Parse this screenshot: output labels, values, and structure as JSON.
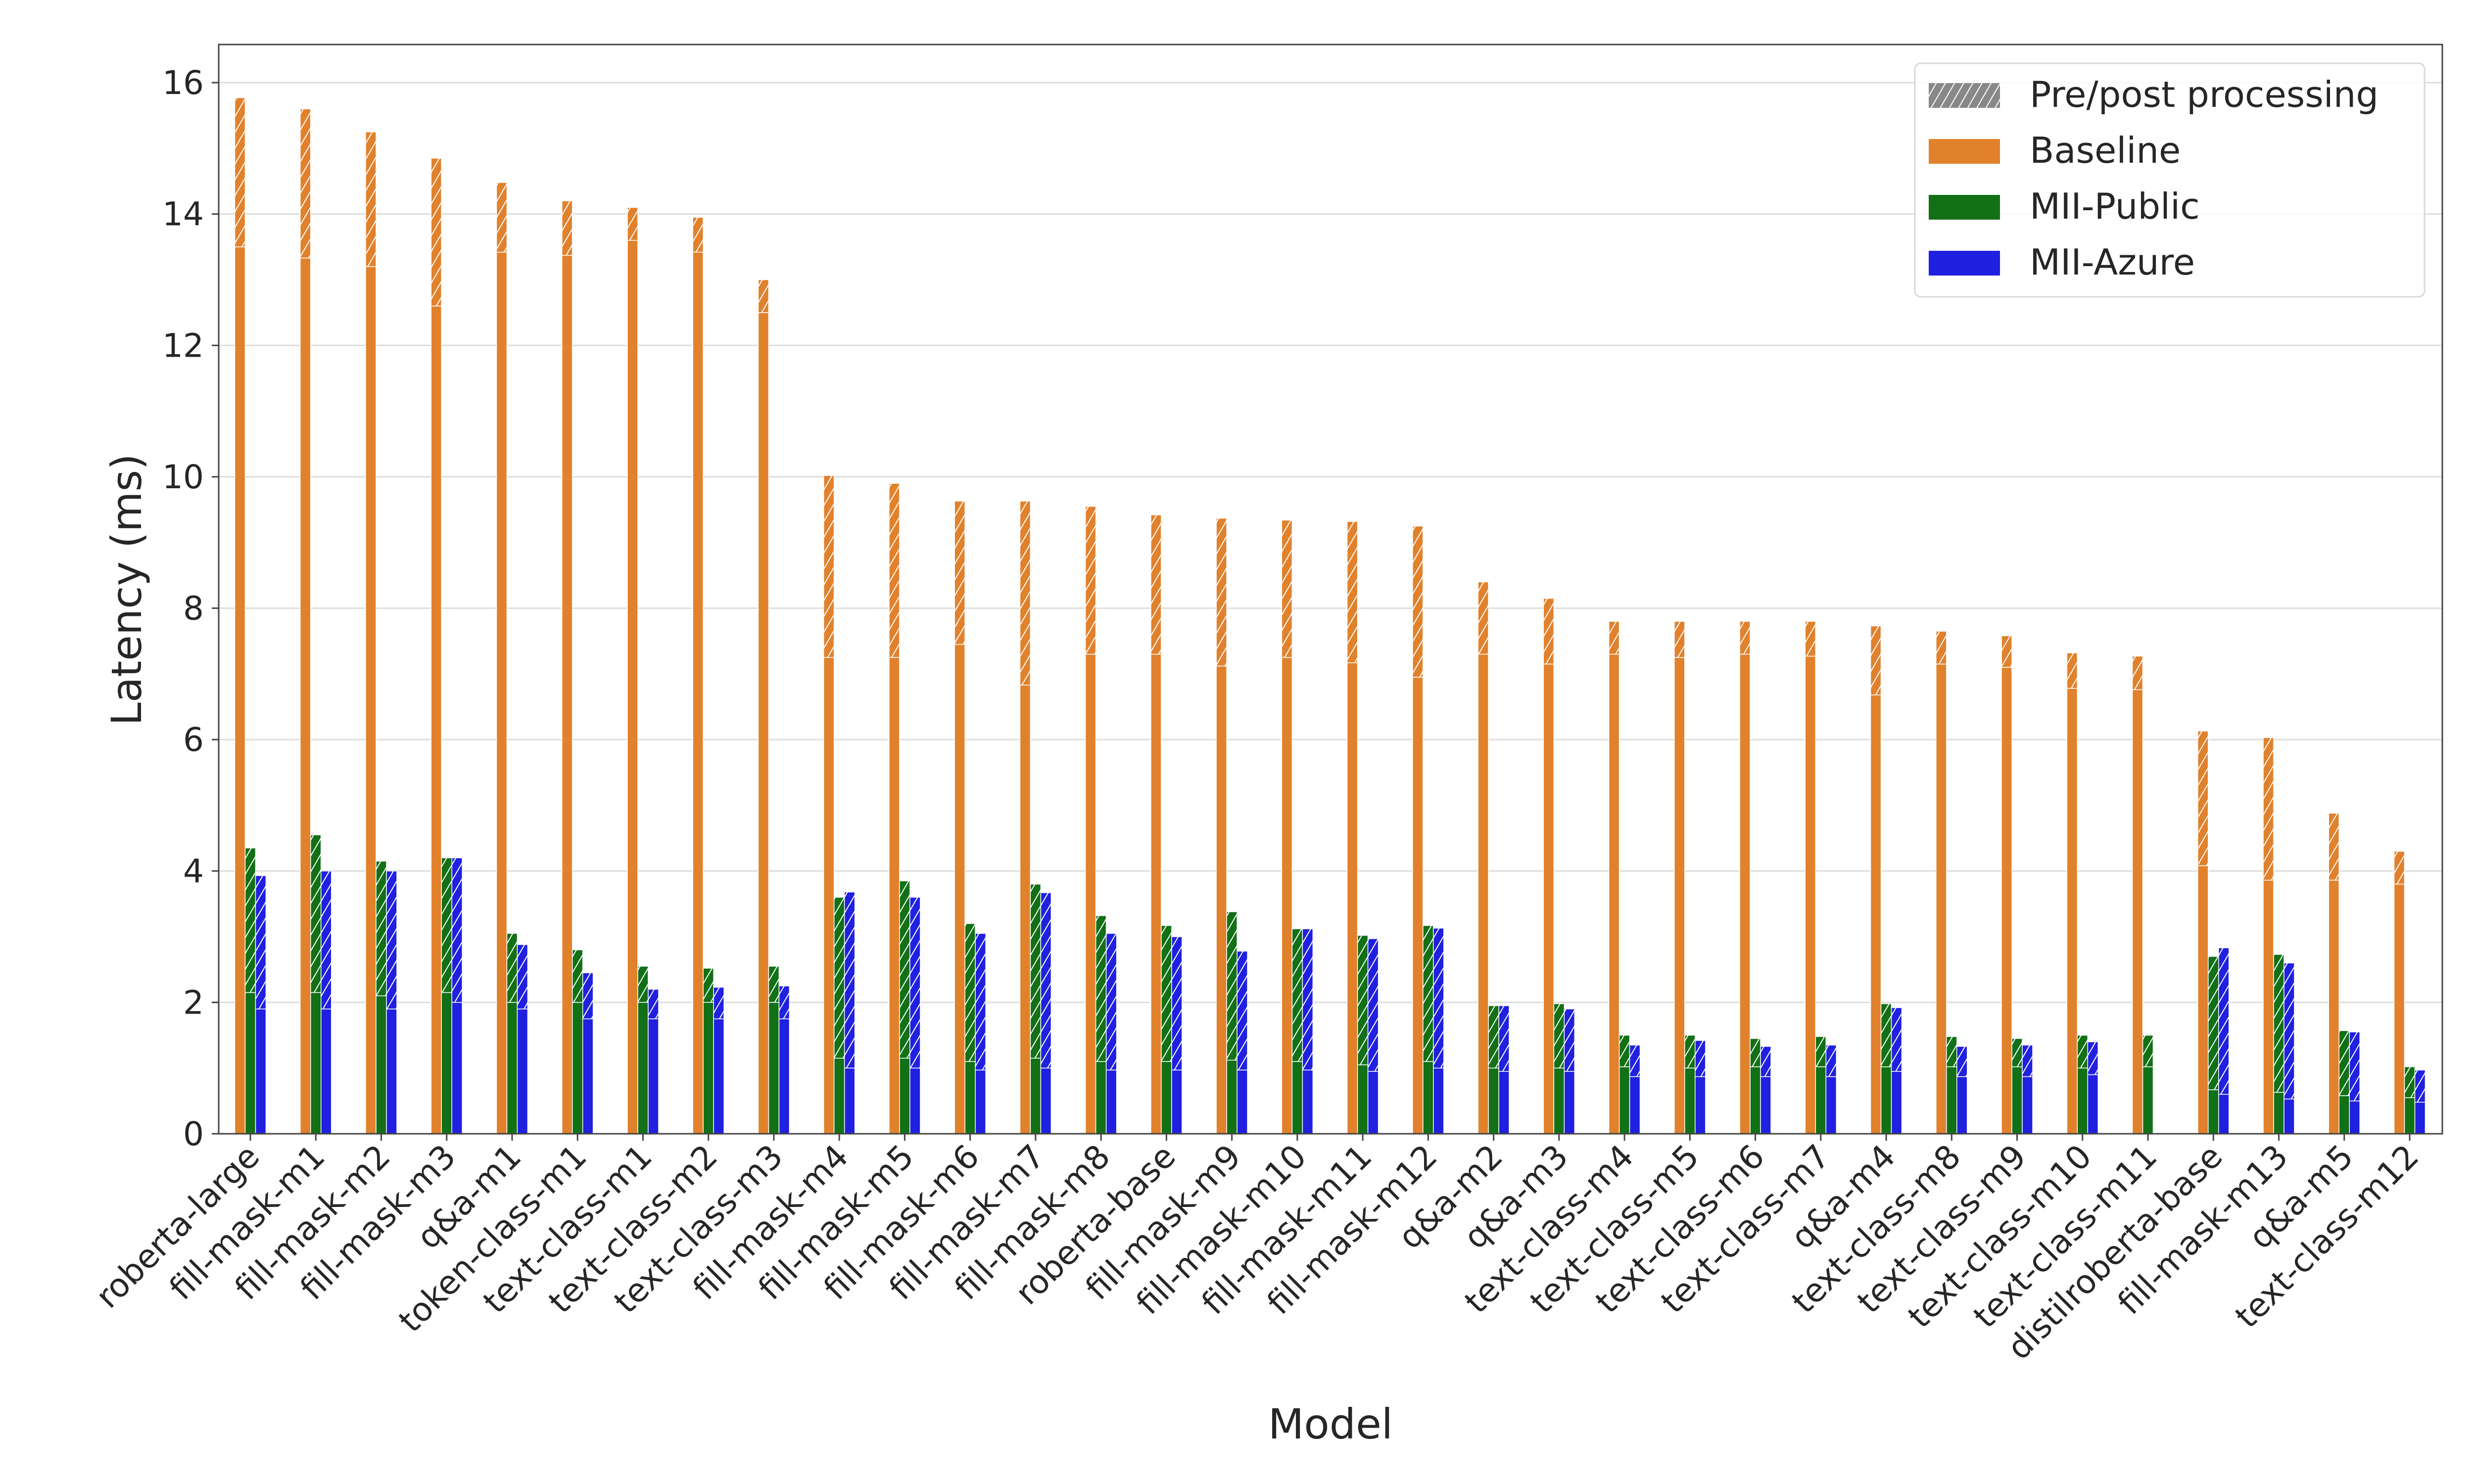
{
  "chart_data": {
    "type": "bar",
    "xlabel": "Model",
    "ylabel": "Latency (ms)",
    "ylim": [
      0,
      16.58
    ],
    "yticks": [
      0,
      2,
      4,
      6,
      8,
      10,
      12,
      14,
      16
    ],
    "grid": true,
    "legend_placement": "top-right",
    "legend": [
      {
        "label": "Pre/post processing",
        "style": "hatch",
        "color": "#888888"
      },
      {
        "label": "Baseline",
        "color": "#e1812c"
      },
      {
        "label": "MII-Public",
        "color": "#127016"
      },
      {
        "label": "MII-Azure",
        "color": "#2020e0"
      }
    ],
    "categories": [
      "roberta-large",
      "fill-mask-m1",
      "fill-mask-m2",
      "fill-mask-m3",
      "q&a-m1",
      "token-class-m1",
      "text-class-m1",
      "text-class-m2",
      "text-class-m3",
      "fill-mask-m4",
      "fill-mask-m5",
      "fill-mask-m6",
      "fill-mask-m7",
      "fill-mask-m8",
      "roberta-base",
      "fill-mask-m9",
      "fill-mask-m10",
      "fill-mask-m11",
      "fill-mask-m12",
      "q&a-m2",
      "q&a-m3",
      "text-class-m4",
      "text-class-m5",
      "text-class-m6",
      "text-class-m7",
      "q&a-m4",
      "text-class-m8",
      "text-class-m9",
      "text-class-m10",
      "text-class-m11",
      "distilroberta-base",
      "fill-mask-m13",
      "q&a-m5",
      "text-class-m12"
    ],
    "series": [
      {
        "name": "Baseline",
        "color": "#e1812c",
        "total": [
          15.77,
          15.6,
          15.25,
          14.85,
          14.48,
          14.2,
          14.1,
          13.95,
          13.0,
          10.02,
          9.9,
          9.63,
          9.63,
          9.55,
          9.42,
          9.37,
          9.34,
          9.32,
          9.25,
          8.4,
          8.15,
          7.8,
          7.8,
          7.8,
          7.8,
          7.73,
          7.65,
          7.58,
          7.32,
          7.27,
          6.13,
          6.03,
          4.88,
          4.3
        ],
        "model": [
          13.5,
          13.33,
          13.2,
          12.6,
          13.42,
          13.37,
          13.6,
          13.42,
          12.5,
          7.25,
          7.25,
          7.45,
          6.83,
          7.3,
          7.3,
          7.12,
          7.25,
          7.17,
          6.95,
          7.3,
          7.15,
          7.3,
          7.25,
          7.3,
          7.27,
          6.68,
          7.15,
          7.1,
          6.78,
          6.76,
          4.08,
          3.86,
          3.86,
          3.8
        ]
      },
      {
        "name": "MII-Public",
        "color": "#127016",
        "total": [
          4.35,
          4.55,
          4.15,
          4.2,
          3.05,
          2.8,
          2.55,
          2.52,
          2.55,
          3.6,
          3.85,
          3.2,
          3.8,
          3.32,
          3.17,
          3.38,
          3.12,
          3.02,
          3.17,
          1.95,
          1.98,
          1.5,
          1.5,
          1.45,
          1.48,
          1.98,
          1.48,
          1.45,
          1.5,
          1.5,
          2.7,
          2.73,
          1.57,
          1.02
        ],
        "model": [
          2.15,
          2.15,
          2.1,
          2.15,
          2.0,
          2.0,
          2.0,
          2.0,
          2.0,
          1.15,
          1.15,
          1.1,
          1.15,
          1.1,
          1.1,
          1.12,
          1.1,
          1.05,
          1.1,
          1.0,
          1.0,
          1.02,
          1.0,
          1.02,
          1.02,
          1.02,
          1.02,
          1.02,
          1.0,
          1.02,
          0.67,
          0.63,
          0.58,
          0.55
        ]
      },
      {
        "name": "MII-Azure",
        "color": "#2020e0",
        "total": [
          3.93,
          4.0,
          4.0,
          4.2,
          2.88,
          2.45,
          2.2,
          2.23,
          2.25,
          3.68,
          3.6,
          3.05,
          3.67,
          3.05,
          3.0,
          2.78,
          3.12,
          2.97,
          3.13,
          1.95,
          1.9,
          1.35,
          1.42,
          1.33,
          1.35,
          1.92,
          1.33,
          1.35,
          1.4,
          0,
          2.83,
          2.6,
          1.55,
          0.97
        ],
        "model": [
          1.9,
          1.9,
          1.9,
          2.0,
          1.9,
          1.75,
          1.75,
          1.75,
          1.75,
          1.0,
          1.0,
          0.97,
          1.0,
          0.97,
          0.97,
          0.97,
          0.97,
          0.95,
          1.0,
          0.95,
          0.95,
          0.87,
          0.87,
          0.87,
          0.87,
          0.95,
          0.87,
          0.87,
          0.9,
          0,
          0.6,
          0.53,
          0.5,
          0.48
        ]
      }
    ]
  }
}
